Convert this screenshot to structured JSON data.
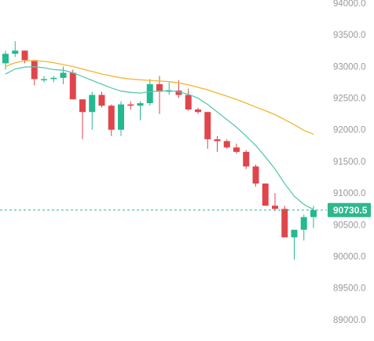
{
  "chart_data": {
    "type": "candlestick",
    "ylim": [
      88650,
      94000
    ],
    "y_ticks": [
      "94000.0",
      "93500.0",
      "93000.0",
      "92500.0",
      "92000.0",
      "91500.0",
      "91000.0",
      "90500.0",
      "90000.0",
      "89500.0",
      "89000.0"
    ],
    "y_tick_values": [
      94000,
      93500,
      93000,
      92500,
      92000,
      91500,
      91000,
      90500,
      90000,
      89500,
      89000
    ],
    "current_price": 90730.5,
    "current_price_label": "90730.5",
    "candles": [
      {
        "o": 93050,
        "h": 93250,
        "l": 92950,
        "c": 93200
      },
      {
        "o": 93200,
        "h": 93400,
        "l": 93150,
        "c": 93250
      },
      {
        "o": 93250,
        "h": 93250,
        "l": 93050,
        "c": 93100
      },
      {
        "o": 93100,
        "h": 93100,
        "l": 92700,
        "c": 92800
      },
      {
        "o": 92800,
        "h": 92850,
        "l": 92750,
        "c": 92800
      },
      {
        "o": 92800,
        "h": 92850,
        "l": 92750,
        "c": 92820
      },
      {
        "o": 92820,
        "h": 93000,
        "l": 92720,
        "c": 92900
      },
      {
        "o": 92900,
        "h": 92950,
        "l": 92480,
        "c": 92480
      },
      {
        "o": 92480,
        "h": 92480,
        "l": 91850,
        "c": 92280
      },
      {
        "o": 92280,
        "h": 92600,
        "l": 92000,
        "c": 92550
      },
      {
        "o": 92550,
        "h": 92600,
        "l": 92350,
        "c": 92380
      },
      {
        "o": 92380,
        "h": 92400,
        "l": 91900,
        "c": 92000
      },
      {
        "o": 92000,
        "h": 92450,
        "l": 91900,
        "c": 92400
      },
      {
        "o": 92400,
        "h": 92450,
        "l": 92320,
        "c": 92380
      },
      {
        "o": 92380,
        "h": 92450,
        "l": 92150,
        "c": 92420
      },
      {
        "o": 92420,
        "h": 92800,
        "l": 92380,
        "c": 92720
      },
      {
        "o": 92720,
        "h": 92850,
        "l": 92250,
        "c": 92600
      },
      {
        "o": 92600,
        "h": 92750,
        "l": 92550,
        "c": 92620
      },
      {
        "o": 92620,
        "h": 92780,
        "l": 92500,
        "c": 92550
      },
      {
        "o": 92550,
        "h": 92650,
        "l": 92300,
        "c": 92320
      },
      {
        "o": 92320,
        "h": 92350,
        "l": 92250,
        "c": 92280
      },
      {
        "o": 92280,
        "h": 92280,
        "l": 91700,
        "c": 91850
      },
      {
        "o": 91850,
        "h": 91900,
        "l": 91650,
        "c": 91820
      },
      {
        "o": 91820,
        "h": 91850,
        "l": 91700,
        "c": 91720
      },
      {
        "o": 91720,
        "h": 91780,
        "l": 91620,
        "c": 91650
      },
      {
        "o": 91650,
        "h": 91680,
        "l": 91380,
        "c": 91420
      },
      {
        "o": 91420,
        "h": 91450,
        "l": 91100,
        "c": 91150
      },
      {
        "o": 91150,
        "h": 91150,
        "l": 90800,
        "c": 90800
      },
      {
        "o": 90800,
        "h": 91000,
        "l": 90720,
        "c": 90750
      },
      {
        "o": 90750,
        "h": 90800,
        "l": 90300,
        "c": 90300
      },
      {
        "o": 90300,
        "h": 90400,
        "l": 89950,
        "c": 90420
      },
      {
        "o": 90420,
        "h": 90660,
        "l": 90250,
        "c": 90620
      },
      {
        "o": 90620,
        "h": 90800,
        "l": 90450,
        "c": 90730
      }
    ],
    "ma_fast": [
      92880,
      92960,
      92990,
      92995,
      92980,
      92950,
      92940,
      92900,
      92840,
      92780,
      92720,
      92660,
      92610,
      92590,
      92580,
      92600,
      92610,
      92620,
      92600,
      92560,
      92500,
      92400,
      92280,
      92160,
      92040,
      91900,
      91750,
      91570,
      91380,
      91150,
      90950,
      90820,
      90740
    ],
    "ma_slow": [
      93000,
      93060,
      93090,
      93090,
      93080,
      93060,
      93030,
      93000,
      92960,
      92920,
      92880,
      92850,
      92820,
      92800,
      92790,
      92780,
      92770,
      92760,
      92740,
      92710,
      92670,
      92630,
      92580,
      92530,
      92480,
      92420,
      92360,
      92300,
      92240,
      92160,
      92080,
      91990,
      91930
    ],
    "colors": {
      "up": "#26b88f",
      "down": "#e0454c",
      "ma_fast": "#5cc7b2",
      "ma_slow": "#f2b630",
      "price_label_bg": "#2fb78d",
      "grid_text": "#9a9a9a"
    }
  }
}
